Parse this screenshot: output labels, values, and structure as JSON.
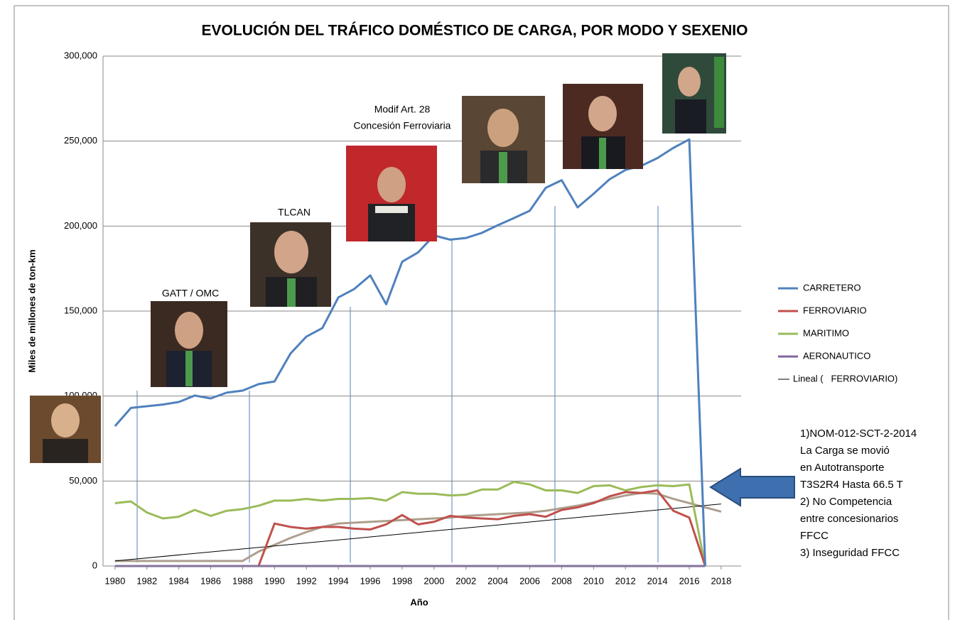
{
  "chart_data": {
    "type": "line",
    "title": "EVOLUCIÓN DEL TRÁFICO DOMÉSTICO DE CARGA, POR MODO Y SEXENIO",
    "x_label": "Año",
    "y_label": "Miles de millones de ton-km",
    "x": [
      1980,
      1981,
      1982,
      1983,
      1984,
      1985,
      1986,
      1987,
      1988,
      1989,
      1990,
      1991,
      1992,
      1993,
      1994,
      1995,
      1996,
      1997,
      1998,
      1999,
      2000,
      2001,
      2002,
      2003,
      2004,
      2005,
      2006,
      2007,
      2008,
      2009,
      2010,
      2011,
      2012,
      2013,
      2014,
      2015,
      2016,
      2017,
      2018
    ],
    "xlim": [
      1979.25,
      2019.25
    ],
    "xticks": [
      1980,
      1982,
      1984,
      1986,
      1988,
      1990,
      1992,
      1994,
      1996,
      1998,
      2000,
      2002,
      2004,
      2006,
      2008,
      2010,
      2012,
      2014,
      2016,
      2018
    ],
    "ylim": [
      0,
      300000
    ],
    "yticks": [
      0,
      {
        "value": 50000,
        "label": "50,000"
      },
      {
        "value": 100000,
        "label": "100,000"
      },
      {
        "value": 150000,
        "label": "150,000"
      },
      {
        "value": 200000,
        "label": "200,000"
      },
      {
        "value": 250000,
        "label": "250,000"
      },
      {
        "value": 300000,
        "label": "300,000"
      }
    ],
    "grid": true,
    "legend": "right",
    "series": [
      {
        "name": "CARRETERO",
        "color": "#4f81bd",
        "line_width": 3,
        "values": [
          82300,
          93000,
          94000,
          95000,
          96500,
          100300,
          98600,
          102000,
          103200,
          107000,
          108600,
          125000,
          135000,
          140000,
          158000,
          163000,
          171000,
          154000,
          179000,
          184500,
          194500,
          192000,
          193000,
          196000,
          200500,
          204700,
          209000,
          222500,
          227000,
          211000,
          219000,
          227500,
          233000,
          235500,
          240000,
          246000,
          251000,
          0,
          null
        ]
      },
      {
        "name": "FERROVIARIO",
        "color": "#c0504d",
        "line_width": 3,
        "values": [
          null,
          null,
          null,
          null,
          null,
          null,
          null,
          null,
          null,
          0,
          25000,
          23000,
          22000,
          23000,
          23000,
          22000,
          21500,
          24500,
          30000,
          24500,
          26000,
          29500,
          28500,
          28000,
          27500,
          29500,
          30500,
          29000,
          33000,
          34500,
          37000,
          41000,
          43500,
          43000,
          44500,
          32500,
          28500,
          0,
          null
        ]
      },
      {
        "name": "MARITIMO",
        "color": "#9bbb59",
        "line_width": 3,
        "values": [
          37000,
          38000,
          31500,
          28000,
          29000,
          33000,
          29500,
          32500,
          33500,
          35500,
          38500,
          38500,
          39500,
          38500,
          39500,
          39500,
          40000,
          38500,
          43500,
          42500,
          42500,
          41500,
          42000,
          45000,
          45000,
          49500,
          48000,
          44500,
          44500,
          43000,
          47000,
          47500,
          44500,
          46500,
          47500,
          47000,
          48000,
          0,
          null
        ]
      },
      {
        "name": "AERONAUTICO",
        "color": "#8064a2",
        "line_width": 3,
        "values": [
          0,
          0,
          0,
          0,
          0,
          0,
          0,
          0,
          0,
          0,
          0,
          0,
          0,
          0,
          0,
          0,
          0,
          0,
          0,
          0,
          0,
          0,
          0,
          0,
          0,
          0,
          0,
          0,
          0,
          0,
          0,
          0,
          0,
          0,
          0,
          0,
          0,
          0,
          null
        ]
      },
      {
        "name": "Lineal (   FERROVIARIO)",
        "color": "#000000",
        "line_width": 1,
        "x": [
          1980,
          2018
        ],
        "values": [
          3000,
          36500
        ]
      },
      {
        "color": "#ad9f8d",
        "line_width": 3,
        "values": [
          3000,
          3000,
          3000,
          3000,
          3000,
          3000,
          3000,
          3000,
          3000,
          8500,
          12500,
          16500,
          20000,
          23000,
          25000,
          25500,
          26000,
          26500,
          27000,
          27500,
          28000,
          28500,
          29500,
          30000,
          30500,
          31000,
          31500,
          32500,
          34000,
          35500,
          37500,
          39500,
          41500,
          43000,
          42500,
          39500,
          37000,
          34500,
          32000
        ]
      }
    ],
    "annotations": [
      "GATT / OMC",
      "TLCAN",
      "Modif Art. 28",
      "Concesión Ferroviaria"
    ],
    "note_lines": [
      "1)NOM-012-SCT-2-2014",
      "La Carga se movió",
      "en Autotransporte",
      "T3S2R4 Hasta 66.5 T",
      "2) No Competencia",
      "entre concesionarios",
      "FFCC",
      "3) Inseguridad FFCC"
    ]
  }
}
